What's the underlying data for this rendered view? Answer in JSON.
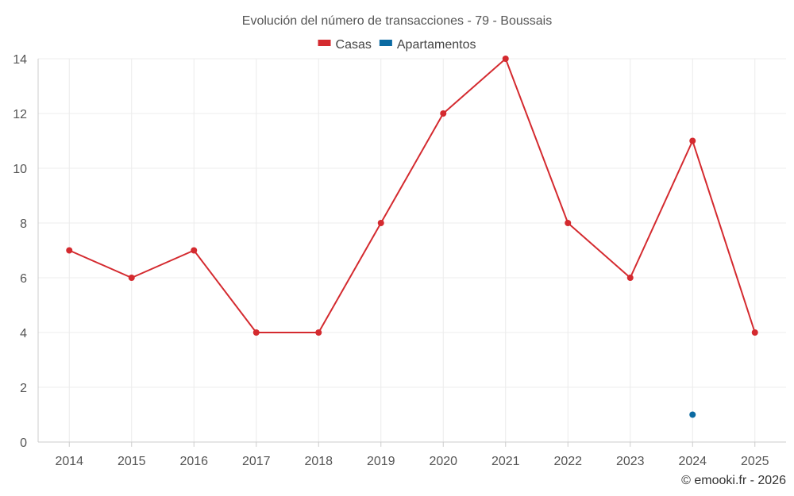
{
  "chart_data": {
    "type": "line",
    "title": "Evolución del número de transacciones - 79 - Boussais",
    "x": [
      "2014",
      "2015",
      "2016",
      "2017",
      "2018",
      "2019",
      "2020",
      "2021",
      "2022",
      "2023",
      "2024",
      "2025"
    ],
    "series": [
      {
        "name": "Casas",
        "color": "#d42a2f",
        "values": [
          7,
          6,
          7,
          4,
          4,
          8,
          12,
          14,
          8,
          6,
          11,
          4
        ]
      },
      {
        "name": "Apartamentos",
        "color": "#0b6aa2",
        "values": [
          null,
          null,
          null,
          null,
          null,
          null,
          null,
          null,
          null,
          null,
          1,
          null
        ]
      }
    ],
    "ylim": [
      0,
      14
    ],
    "yticks": [
      0,
      2,
      4,
      6,
      8,
      10,
      12,
      14
    ],
    "grid": true,
    "legend_position": "top-center"
  },
  "credit": "© emooki.fr - 2026"
}
